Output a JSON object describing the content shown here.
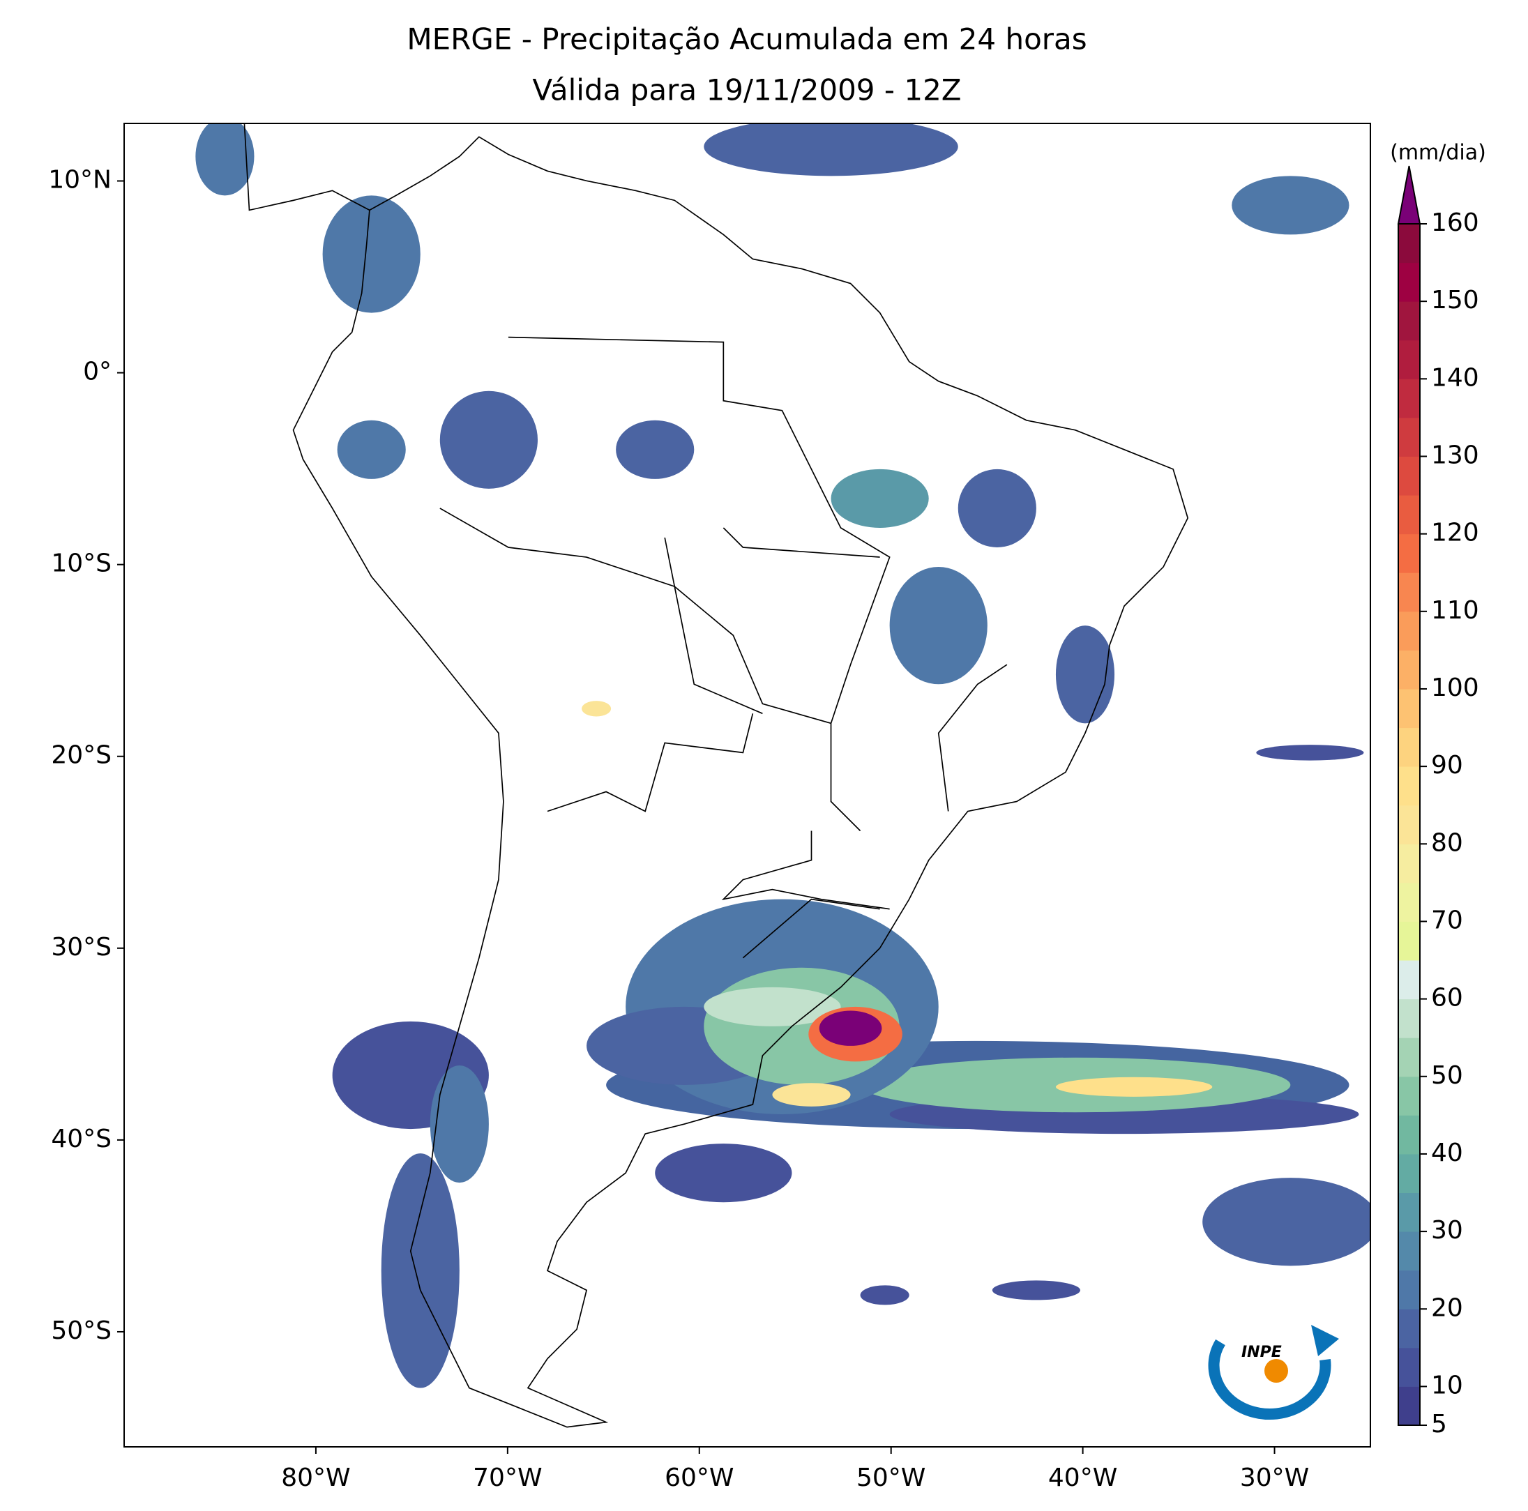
{
  "chart_data": {
    "type": "map",
    "title": "MERGE - Precipitação Acumulada em 24 horas",
    "subtitle": "Válida para 19/11/2009 - 12Z",
    "xlim": [
      -90,
      -25
    ],
    "ylim": [
      -56,
      13
    ],
    "xticks": [
      {
        "value": -80,
        "label": "80°W"
      },
      {
        "value": -70,
        "label": "70°W"
      },
      {
        "value": -60,
        "label": "60°W"
      },
      {
        "value": -50,
        "label": "50°W"
      },
      {
        "value": -40,
        "label": "40°W"
      },
      {
        "value": -30,
        "label": "30°W"
      }
    ],
    "yticks": [
      {
        "value": 10,
        "label": "10°N"
      },
      {
        "value": 0,
        "label": "0°"
      },
      {
        "value": -10,
        "label": "10°S"
      },
      {
        "value": -20,
        "label": "20°S"
      },
      {
        "value": -30,
        "label": "30°S"
      },
      {
        "value": -40,
        "label": "40°S"
      },
      {
        "value": -50,
        "label": "50°S"
      }
    ],
    "colorbar": {
      "label": "(mm/dia)",
      "lim": [
        5,
        160
      ],
      "ticks": [
        5,
        10,
        20,
        30,
        40,
        50,
        60,
        70,
        80,
        90,
        100,
        110,
        120,
        130,
        140,
        150,
        160
      ],
      "colors": [
        "#3f3f8c",
        "#46529a",
        "#4b64a2",
        "#4f78a8",
        "#5489aa",
        "#5a9aa8",
        "#63aba3",
        "#71b8a0",
        "#88c6a6",
        "#a4d3b4",
        "#c2e1cc",
        "#dcedea",
        "#e6f598",
        "#eef3a0",
        "#f6eda0",
        "#fbe497",
        "#fee08b",
        "#fdd37f",
        "#fdc272",
        "#fcb066",
        "#fa9c5a",
        "#f88650",
        "#f46d43",
        "#e95c40",
        "#dd4a3f",
        "#cf3b3f",
        "#c02b3f",
        "#b01d3e",
        "#a0153e",
        "#9e0142",
        "#8b0a3c"
      ],
      "over_color": "#7a0177"
    }
  },
  "logo": "INPE"
}
